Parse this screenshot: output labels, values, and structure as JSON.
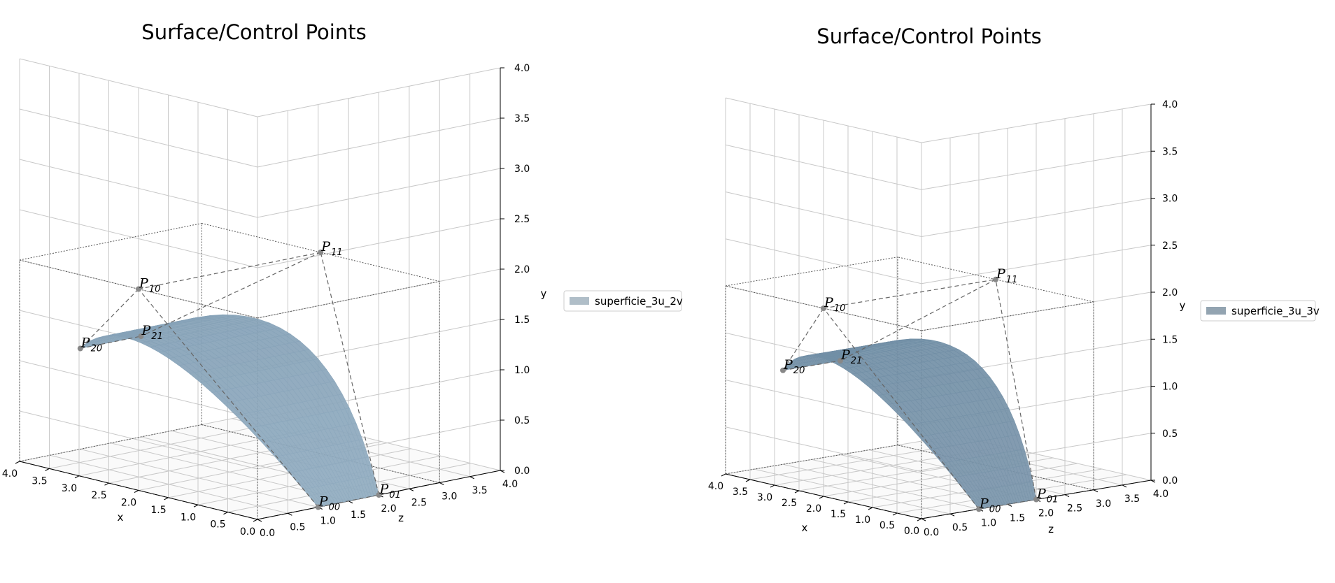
{
  "chart_data": [
    {
      "type": "surface3d",
      "title": "Surface/Control Points",
      "xlabel": "x",
      "ylabel": "y",
      "zlabel": "z",
      "xlim": [
        0.0,
        4.0
      ],
      "ylim": [
        0.0,
        4.0
      ],
      "zlim": [
        0.0,
        4.0
      ],
      "x_ticks": [
        "0.0",
        "0.5",
        "1.0",
        "1.5",
        "2.0",
        "2.5",
        "3.0",
        "3.5",
        "4.0"
      ],
      "y_ticks": [
        "0.0",
        "0.5",
        "1.0",
        "1.5",
        "2.0",
        "2.5",
        "3.0",
        "3.5",
        "4.0"
      ],
      "z_ticks": [
        "0.0",
        "0.5",
        "1.0",
        "1.5",
        "2.0",
        "2.5",
        "3.0",
        "3.5",
        "4.0"
      ],
      "grid": true,
      "legend": {
        "position": "right",
        "entries": [
          {
            "name": "superficie_3u_2v",
            "color": "#b0bec8"
          }
        ]
      },
      "surface_color": "#a9c1d4",
      "surface_dark": "#7d9ab0",
      "control_points": [
        {
          "base": "P",
          "sub": "00",
          "x": 0.0,
          "y": 0.0,
          "z": 1.0
        },
        {
          "base": "P",
          "sub": "01",
          "x": 0.0,
          "y": 0.0,
          "z": 2.0
        },
        {
          "base": "P",
          "sub": "10",
          "x": 2.0,
          "y": 2.0,
          "z": 0.0
        },
        {
          "base": "P",
          "sub": "11",
          "x": 2.0,
          "y": 2.0,
          "z": 3.0
        },
        {
          "base": "P",
          "sub": "20",
          "x": 4.0,
          "y": 1.0,
          "z": 1.0
        },
        {
          "base": "P",
          "sub": "21",
          "x": 4.0,
          "y": 1.0,
          "z": 2.0
        }
      ]
    },
    {
      "type": "surface3d",
      "title": "Surface/Control Points",
      "xlabel": "x",
      "ylabel": "y",
      "zlabel": "z",
      "xlim": [
        0.0,
        4.0
      ],
      "ylim": [
        0.0,
        4.0
      ],
      "zlim": [
        0.0,
        4.0
      ],
      "x_ticks": [
        "0.0",
        "0.5",
        "1.0",
        "1.5",
        "2.0",
        "2.5",
        "3.0",
        "3.5",
        "4.0"
      ],
      "y_ticks": [
        "0.0",
        "0.5",
        "1.0",
        "1.5",
        "2.0",
        "2.5",
        "3.0",
        "3.5",
        "4.0"
      ],
      "z_ticks": [
        "0.0",
        "0.5",
        "1.0",
        "1.5",
        "2.0",
        "2.5",
        "3.0",
        "3.5",
        "4.0"
      ],
      "grid": true,
      "legend": {
        "position": "right",
        "entries": [
          {
            "name": "superficie_3u_3v",
            "color": "#93a4b1"
          }
        ]
      },
      "surface_color": "#8fa3b3",
      "surface_dark": "#6a8aa3",
      "control_points": [
        {
          "base": "P",
          "sub": "00",
          "x": 0.0,
          "y": 0.0,
          "z": 1.0
        },
        {
          "base": "P",
          "sub": "01",
          "x": 0.0,
          "y": 0.0,
          "z": 2.0
        },
        {
          "base": "P",
          "sub": "10",
          "x": 2.0,
          "y": 2.0,
          "z": 0.0
        },
        {
          "base": "P",
          "sub": "11",
          "x": 2.0,
          "y": 2.0,
          "z": 3.0
        },
        {
          "base": "P",
          "sub": "20",
          "x": 4.0,
          "y": 1.0,
          "z": 1.0
        },
        {
          "base": "P",
          "sub": "21",
          "x": 4.0,
          "y": 1.0,
          "z": 2.0
        }
      ]
    }
  ]
}
